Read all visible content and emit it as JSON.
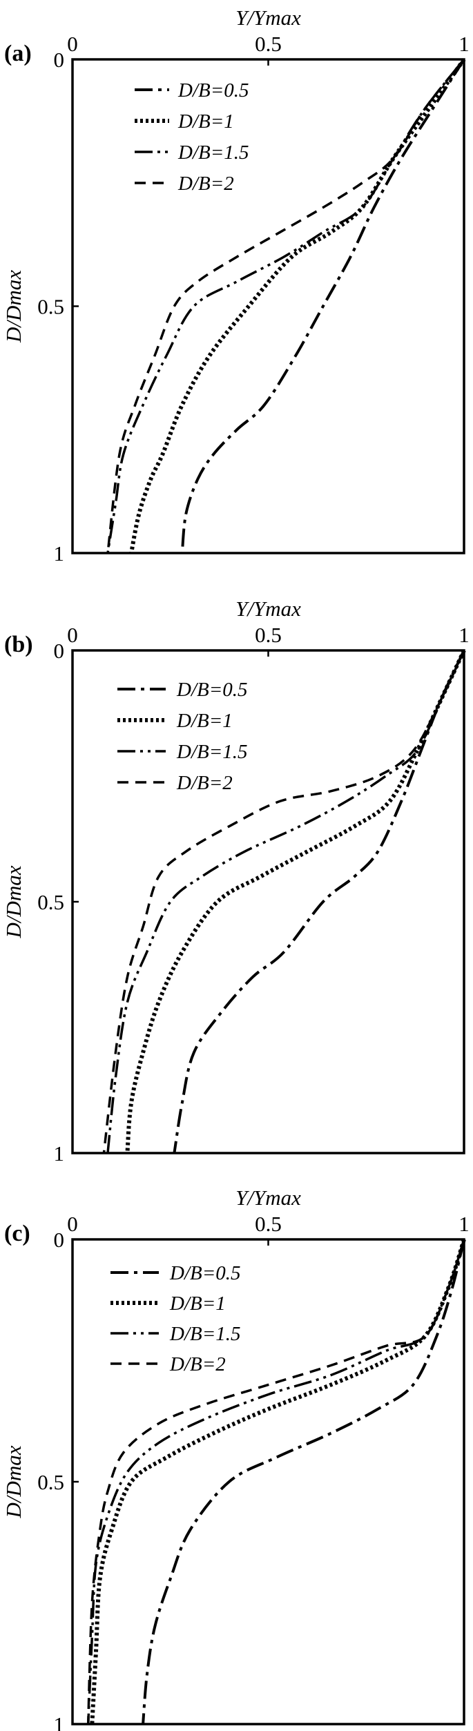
{
  "chart_data": [
    {
      "panel_label": "(a)",
      "type": "line",
      "xlabel": "Y/Ymax",
      "ylabel": "D/Dmax",
      "xlim": [
        0,
        1
      ],
      "ylim": [
        0,
        1
      ],
      "y_inverted": true,
      "xticks": [
        "0",
        "0.5",
        "1"
      ],
      "yticks": [
        "0",
        "0.5",
        "1"
      ],
      "legend_position": "top-left",
      "series": [
        {
          "name": "D/B=0.5",
          "style": "dashdot",
          "x": [
            1.0,
            0.92,
            0.84,
            0.77,
            0.71,
            0.64,
            0.57,
            0.49,
            0.42,
            0.36,
            0.32,
            0.29,
            0.28
          ],
          "y": [
            0,
            0.1,
            0.2,
            0.3,
            0.4,
            0.5,
            0.6,
            0.7,
            0.75,
            0.8,
            0.85,
            0.92,
            1.0
          ]
        },
        {
          "name": "D/B=1",
          "style": "dotted",
          "x": [
            1.0,
            0.91,
            0.82,
            0.74,
            0.66,
            0.56,
            0.45,
            0.35,
            0.28,
            0.23,
            0.2,
            0.17,
            0.15
          ],
          "y": [
            0,
            0.1,
            0.2,
            0.3,
            0.35,
            0.4,
            0.5,
            0.6,
            0.7,
            0.8,
            0.85,
            0.92,
            1.0
          ]
        },
        {
          "name": "D/B=1.5",
          "style": "dashdotdot",
          "x": [
            1.0,
            0.9,
            0.82,
            0.74,
            0.64,
            0.54,
            0.42,
            0.31,
            0.24,
            0.18,
            0.13,
            0.11,
            0.09
          ],
          "y": [
            0,
            0.1,
            0.2,
            0.3,
            0.35,
            0.4,
            0.45,
            0.5,
            0.6,
            0.7,
            0.8,
            0.9,
            1.0
          ]
        },
        {
          "name": "D/B=2",
          "style": "dashed",
          "x": [
            1.0,
            0.9,
            0.82,
            0.74,
            0.64,
            0.53,
            0.42,
            0.32,
            0.26,
            0.21,
            0.16,
            0.12,
            0.09
          ],
          "y": [
            0,
            0.1,
            0.2,
            0.25,
            0.3,
            0.35,
            0.4,
            0.45,
            0.5,
            0.6,
            0.7,
            0.8,
            1.0
          ]
        }
      ]
    },
    {
      "panel_label": "(b)",
      "type": "line",
      "xlabel": "Y/Ymax",
      "ylabel": "D/Dmax",
      "xlim": [
        0,
        1
      ],
      "ylim": [
        0,
        1
      ],
      "y_inverted": true,
      "xticks": [
        "0",
        "0.5",
        "1"
      ],
      "yticks": [
        "0",
        "0.5",
        "1"
      ],
      "legend_position": "top-left",
      "series": [
        {
          "name": "D/B=0.5",
          "style": "dashdot",
          "x": [
            1.0,
            0.94,
            0.89,
            0.84,
            0.78,
            0.72,
            0.64,
            0.54,
            0.46,
            0.38,
            0.31,
            0.28,
            0.26
          ],
          "y": [
            0,
            0.1,
            0.2,
            0.3,
            0.4,
            0.45,
            0.5,
            0.6,
            0.65,
            0.72,
            0.8,
            0.9,
            1.0
          ]
        },
        {
          "name": "D/B=1",
          "style": "dotted",
          "x": [
            1.0,
            0.94,
            0.88,
            0.81,
            0.72,
            0.6,
            0.48,
            0.37,
            0.28,
            0.22,
            0.18,
            0.15,
            0.14
          ],
          "y": [
            0,
            0.1,
            0.2,
            0.3,
            0.35,
            0.4,
            0.45,
            0.5,
            0.6,
            0.7,
            0.8,
            0.9,
            1.0
          ]
        },
        {
          "name": "D/B=1.5",
          "style": "dashdotdot",
          "x": [
            1.0,
            0.94,
            0.88,
            0.8,
            0.7,
            0.58,
            0.44,
            0.33,
            0.25,
            0.19,
            0.14,
            0.11,
            0.09
          ],
          "y": [
            0,
            0.1,
            0.2,
            0.25,
            0.3,
            0.35,
            0.4,
            0.45,
            0.5,
            0.6,
            0.7,
            0.85,
            1.0
          ]
        },
        {
          "name": "D/B=2",
          "style": "dashed",
          "x": [
            1.0,
            0.94,
            0.87,
            0.78,
            0.66,
            0.53,
            0.4,
            0.29,
            0.22,
            0.18,
            0.14,
            0.11,
            0.08
          ],
          "y": [
            0,
            0.1,
            0.2,
            0.25,
            0.28,
            0.3,
            0.35,
            0.4,
            0.45,
            0.55,
            0.65,
            0.8,
            1.0
          ]
        }
      ]
    },
    {
      "panel_label": "(c)",
      "type": "line",
      "xlabel": "Y/Ymax",
      "ylabel": "D/Dmax",
      "xlim": [
        0,
        1
      ],
      "ylim": [
        0,
        1
      ],
      "y_inverted": true,
      "xticks": [
        "0",
        "0.5",
        "1"
      ],
      "yticks": [
        "0",
        "0.5",
        "1"
      ],
      "legend_position": "top-left",
      "series": [
        {
          "name": "D/B=0.5",
          "style": "dashdot",
          "x": [
            1.0,
            0.97,
            0.93,
            0.87,
            0.78,
            0.66,
            0.52,
            0.4,
            0.3,
            0.25,
            0.21,
            0.19,
            0.18
          ],
          "y": [
            0,
            0.1,
            0.2,
            0.3,
            0.35,
            0.4,
            0.45,
            0.5,
            0.6,
            0.7,
            0.8,
            0.9,
            1.0
          ]
        },
        {
          "name": "D/B=1",
          "style": "dotted",
          "x": [
            1.0,
            0.96,
            0.9,
            0.8,
            0.66,
            0.5,
            0.36,
            0.24,
            0.15,
            0.1,
            0.07,
            0.06,
            0.05
          ],
          "y": [
            0,
            0.1,
            0.2,
            0.25,
            0.3,
            0.35,
            0.4,
            0.45,
            0.5,
            0.6,
            0.7,
            0.85,
            1.0
          ]
        },
        {
          "name": "D/B=1.5",
          "style": "dashdotdot",
          "x": [
            1.0,
            0.96,
            0.9,
            0.8,
            0.66,
            0.5,
            0.34,
            0.22,
            0.14,
            0.09,
            0.06,
            0.05,
            0.04
          ],
          "y": [
            0,
            0.1,
            0.2,
            0.23,
            0.28,
            0.32,
            0.37,
            0.42,
            0.48,
            0.57,
            0.67,
            0.82,
            1.0
          ]
        },
        {
          "name": "D/B=2",
          "style": "dashed",
          "x": [
            1.0,
            0.96,
            0.9,
            0.8,
            0.66,
            0.5,
            0.34,
            0.22,
            0.13,
            0.09,
            0.07,
            0.05,
            0.04
          ],
          "y": [
            0,
            0.1,
            0.2,
            0.22,
            0.26,
            0.3,
            0.34,
            0.38,
            0.44,
            0.52,
            0.6,
            0.75,
            1.0
          ]
        }
      ]
    }
  ]
}
